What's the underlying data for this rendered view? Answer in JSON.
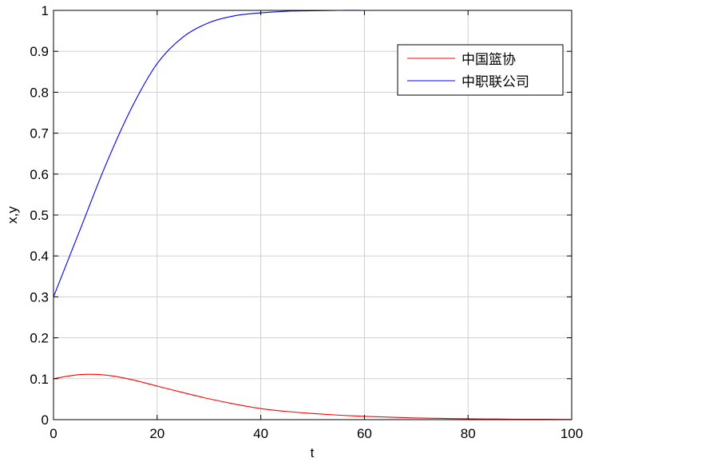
{
  "chart_data": {
    "type": "line",
    "title": "",
    "xlabel": "t",
    "ylabel": "x,y",
    "xlim": [
      0,
      100
    ],
    "ylim": [
      0,
      1
    ],
    "grid": true,
    "legend_position": "top-right",
    "xticks": [
      "0",
      "20",
      "40",
      "60",
      "80",
      "100"
    ],
    "yticks": [
      "0",
      "0.1",
      "0.2",
      "0.3",
      "0.4",
      "0.5",
      "0.6",
      "0.7",
      "0.8",
      "0.9",
      "1"
    ],
    "x": [
      0,
      5,
      10,
      15,
      20,
      25,
      30,
      35,
      40,
      45,
      50,
      55,
      60,
      65,
      70,
      75,
      80,
      85,
      90,
      95,
      100
    ],
    "series": [
      {
        "name": "中国篮协",
        "color": "#ff0000",
        "values": [
          0.1,
          0.11,
          0.109,
          0.098,
          0.082,
          0.066,
          0.051,
          0.038,
          0.027,
          0.02,
          0.015,
          0.011,
          0.008,
          0.006,
          0.004,
          0.003,
          0.002,
          0.0015,
          0.001,
          0.0008,
          0.0005
        ]
      },
      {
        "name": "中职联公司",
        "color": "#0000ff",
        "values": [
          0.3,
          0.46,
          0.62,
          0.76,
          0.87,
          0.935,
          0.97,
          0.987,
          0.994,
          0.998,
          0.999,
          1,
          1,
          1,
          1,
          1,
          1,
          1,
          1,
          1,
          1
        ]
      }
    ]
  }
}
